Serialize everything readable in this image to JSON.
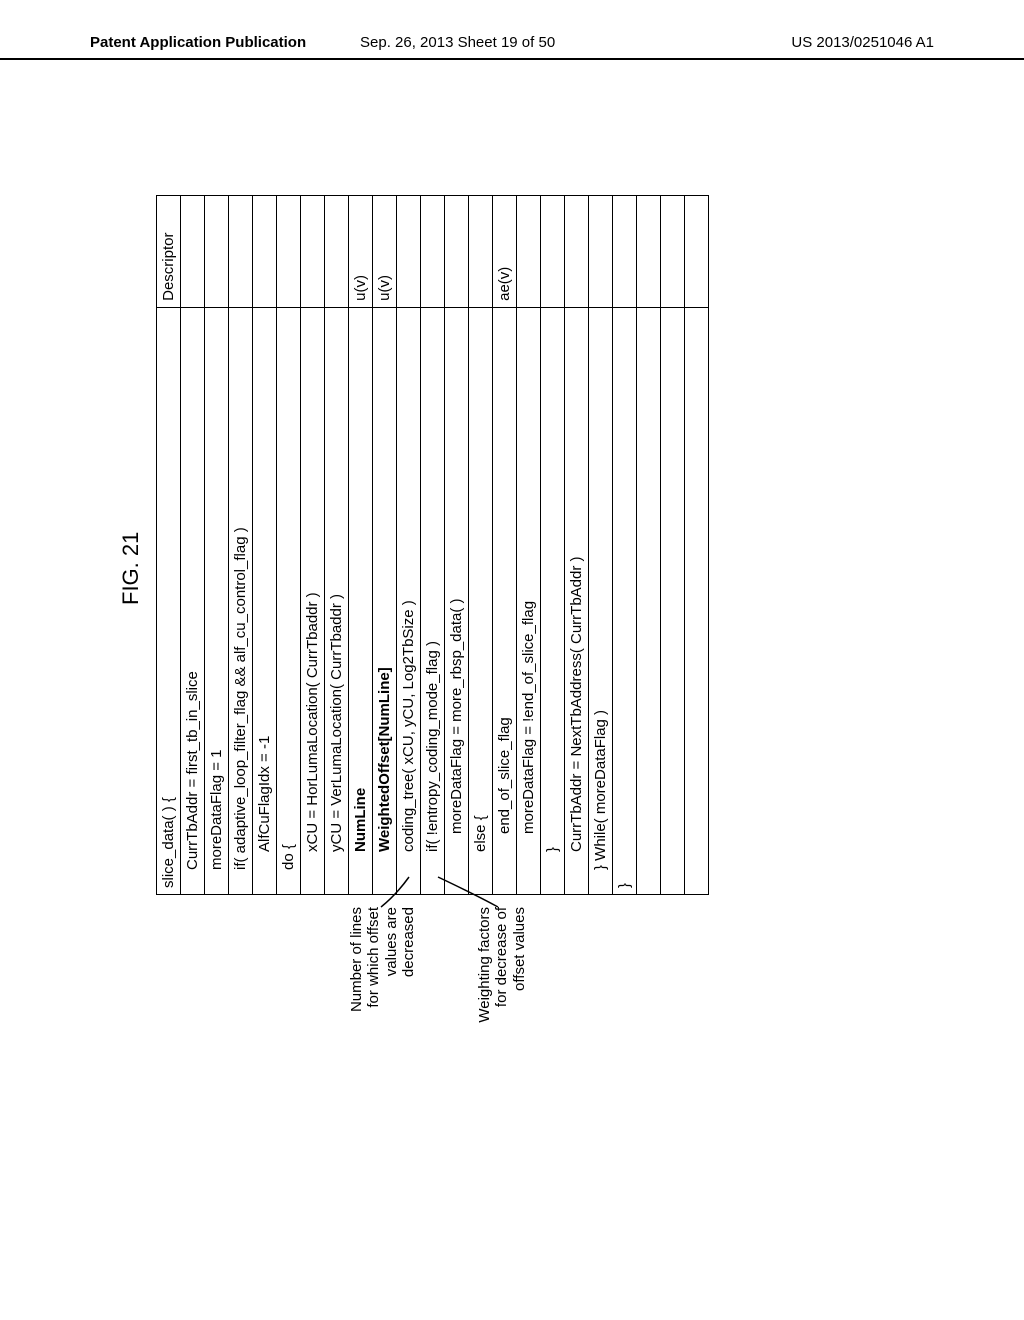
{
  "header": {
    "left": "Patent Application Publication",
    "center": "Sep. 26, 2013  Sheet 19 of 50",
    "right": "US 2013/0251046 A1"
  },
  "figure_title": "FIG. 21",
  "annotations": {
    "a1_line1": "Number of lines",
    "a1_line2": "for which offset",
    "a1_line3": "values are",
    "a1_line4": "decreased",
    "a2_line1": "Weighting factors",
    "a2_line2": "for decrease of",
    "a2_line3": "offset values"
  },
  "table": {
    "header_syntax": "slice_data( ) {",
    "header_desc": "Descriptor",
    "rows": [
      {
        "text": "CurrTbAddr = first_tb_in_slice",
        "indent": 1,
        "bold": false,
        "desc": ""
      },
      {
        "text": "moreDataFlag = 1",
        "indent": 1,
        "bold": false,
        "desc": ""
      },
      {
        "text": "if( adaptive_loop_filter_flag && alf_cu_control_flag )",
        "indent": 1,
        "bold": false,
        "desc": ""
      },
      {
        "text": "AlfCuFlagIdx = -1",
        "indent": 2,
        "bold": false,
        "desc": ""
      },
      {
        "text": "do {",
        "indent": 1,
        "bold": false,
        "desc": ""
      },
      {
        "text": "xCU = HorLumaLocation( CurrTbaddr )",
        "indent": 2,
        "bold": false,
        "desc": ""
      },
      {
        "text": "yCU = VerLumaLocation( CurrTbaddr )",
        "indent": 2,
        "bold": false,
        "desc": ""
      },
      {
        "text": "NumLine",
        "indent": 2,
        "bold": true,
        "desc": "u(v)"
      },
      {
        "text": "WeightedOffset[NumLine]",
        "indent": 2,
        "bold": true,
        "desc": "u(v)"
      },
      {
        "text": "coding_tree( xCU, yCU, Log2TbSize )",
        "indent": 2,
        "bold": false,
        "desc": ""
      },
      {
        "text": "if( !entropy_coding_mode_flag )",
        "indent": 2,
        "bold": false,
        "desc": ""
      },
      {
        "text": "moreDataFlag = more_rbsp_data( )",
        "indent": 3,
        "bold": false,
        "desc": ""
      },
      {
        "text": "else {",
        "indent": 2,
        "bold": false,
        "desc": ""
      },
      {
        "text": "end_of_slice_flag",
        "indent": 3,
        "bold": false,
        "desc": "ae(v)"
      },
      {
        "text": "moreDataFlag = !end_of_slice_flag",
        "indent": 3,
        "bold": false,
        "desc": ""
      },
      {
        "text": "}",
        "indent": 2,
        "bold": false,
        "desc": ""
      },
      {
        "text": "CurrTbAddr = NextTbAddress( CurrTbAddr )",
        "indent": 2,
        "bold": false,
        "desc": ""
      },
      {
        "text": "} While( moreDataFlag )",
        "indent": 1,
        "bold": false,
        "desc": ""
      },
      {
        "text": "}",
        "indent": 0,
        "bold": false,
        "desc": ""
      },
      {
        "text": "",
        "indent": 0,
        "bold": false,
        "desc": ""
      },
      {
        "text": "",
        "indent": 0,
        "bold": false,
        "desc": ""
      },
      {
        "text": "",
        "indent": 0,
        "bold": false,
        "desc": ""
      }
    ]
  }
}
